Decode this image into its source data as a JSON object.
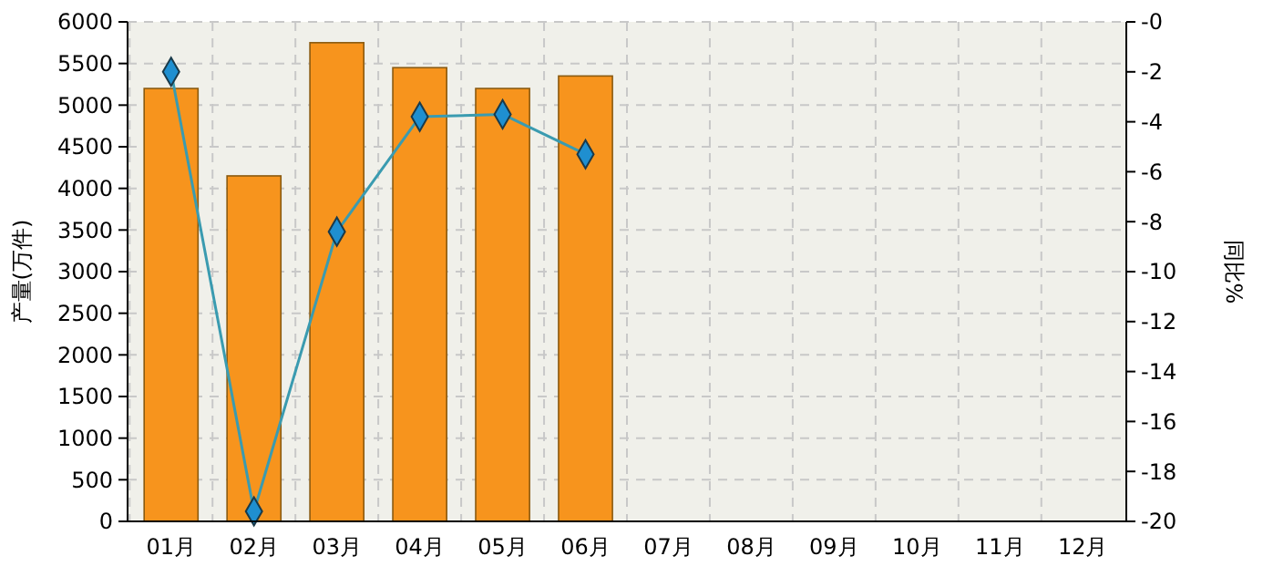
{
  "chart_data": {
    "type": "bar",
    "ylabel": "产量(万件)",
    "y2label": "同比%",
    "categories": [
      "01月",
      "02月",
      "03月",
      "04月",
      "05月",
      "06月",
      "07月",
      "08月",
      "09月",
      "10月",
      "11月",
      "12月"
    ],
    "series": [
      {
        "color": "#f7941d",
        "values": [
          5200,
          4150,
          5750,
          5450,
          5200,
          5350,
          null,
          null,
          null,
          null,
          null,
          null
        ]
      },
      {
        "type": "line",
        "axis": "y2",
        "color": "#3a9bb0",
        "values": [
          -2.0,
          -19.6,
          -8.4,
          -3.8,
          -3.7,
          -5.3,
          null,
          null,
          null,
          null,
          null,
          null
        ]
      }
    ],
    "ylim": [
      0,
      6000
    ],
    "yticks": [
      0,
      500,
      1000,
      1500,
      2000,
      2500,
      3000,
      3500,
      4000,
      4500,
      5000,
      5500,
      6000
    ],
    "y2lim": [
      -20,
      0
    ],
    "y2ticks": [
      -20,
      -18,
      -16,
      -14,
      -12,
      -10,
      -8,
      -6,
      -4,
      -2,
      {
        "value": 0,
        "label": "-0"
      }
    ],
    "grid": true,
    "marker": "diamond",
    "line_style": "solid"
  }
}
